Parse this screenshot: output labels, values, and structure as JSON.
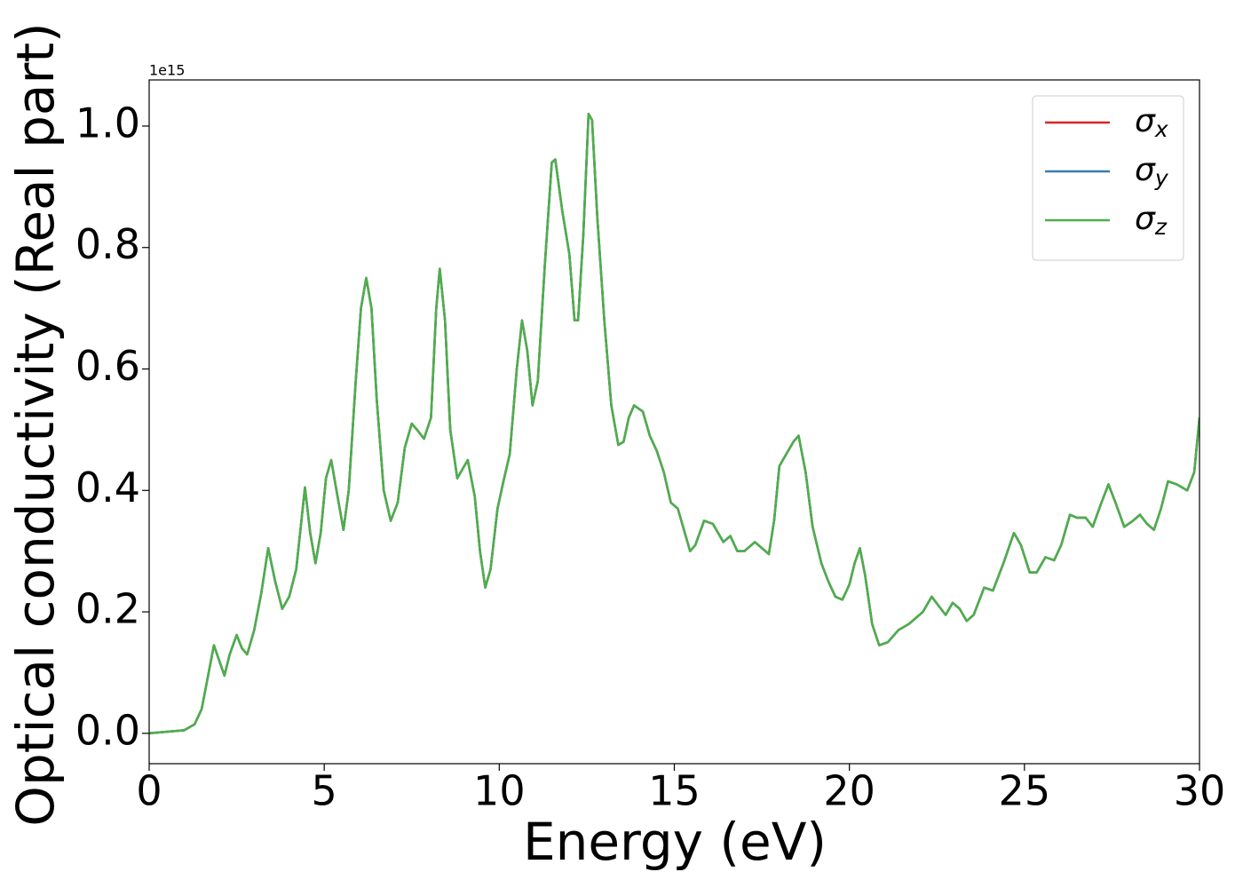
{
  "chart_data": {
    "type": "line",
    "xlabel": "Energy (eV)",
    "ylabel": "Optical conductivity (Real part)",
    "y_offset_label": "1e15",
    "xlim": [
      0,
      30
    ],
    "ylim": [
      -0.05,
      1.076
    ],
    "xticks": [
      0,
      5,
      10,
      15,
      20,
      25,
      30
    ],
    "yticks": [
      {
        "value": 0,
        "label": "0.0"
      },
      0.2,
      0.4,
      0.6,
      0.8,
      {
        "value": 1,
        "label": "1.0"
      }
    ],
    "legend": "upper right",
    "x": [
      0,
      1,
      1.3,
      1.5,
      1.7,
      1.85,
      2.0,
      2.15,
      2.3,
      2.5,
      2.65,
      2.8,
      3.0,
      3.2,
      3.4,
      3.6,
      3.8,
      4.0,
      4.2,
      4.45,
      4.6,
      4.75,
      4.9,
      5.05,
      5.2,
      5.35,
      5.55,
      5.7,
      5.9,
      6.05,
      6.2,
      6.35,
      6.5,
      6.7,
      6.9,
      7.1,
      7.3,
      7.5,
      7.65,
      7.85,
      8.05,
      8.2,
      8.3,
      8.45,
      8.6,
      8.8,
      9.0,
      9.1,
      9.3,
      9.45,
      9.6,
      9.75,
      9.95,
      10.1,
      10.3,
      10.5,
      10.65,
      10.8,
      10.95,
      11.1,
      11.3,
      11.5,
      11.6,
      11.8,
      12.0,
      12.15,
      12.25,
      12.4,
      12.55,
      12.65,
      12.8,
      13.0,
      13.2,
      13.4,
      13.55,
      13.7,
      13.85,
      14.1,
      14.3,
      14.5,
      14.7,
      14.9,
      15.1,
      15.3,
      15.45,
      15.6,
      15.85,
      16.1,
      16.4,
      16.6,
      16.8,
      17.0,
      17.3,
      17.5,
      17.7,
      17.85,
      18.0,
      18.2,
      18.4,
      18.55,
      18.75,
      18.95,
      19.2,
      19.4,
      19.6,
      19.8,
      20.0,
      20.15,
      20.3,
      20.45,
      20.65,
      20.85,
      21.1,
      21.4,
      21.7,
      21.9,
      22.1,
      22.35,
      22.55,
      22.75,
      22.95,
      23.15,
      23.35,
      23.55,
      23.85,
      24.1,
      24.4,
      24.7,
      24.9,
      25.15,
      25.35,
      25.6,
      25.85,
      26.05,
      26.3,
      26.5,
      26.75,
      26.95,
      27.2,
      27.4,
      27.6,
      27.85,
      28.1,
      28.3,
      28.5,
      28.7,
      28.9,
      29.1,
      29.35,
      29.65,
      29.85,
      30.0
    ],
    "series": [
      {
        "name": "σx",
        "color": "#d62728",
        "values": [
          0,
          0.005,
          0.015,
          0.04,
          0.1,
          0.145,
          0.12,
          0.095,
          0.13,
          0.162,
          0.14,
          0.13,
          0.17,
          0.23,
          0.305,
          0.25,
          0.205,
          0.225,
          0.27,
          0.405,
          0.33,
          0.28,
          0.33,
          0.42,
          0.45,
          0.4,
          0.335,
          0.4,
          0.58,
          0.7,
          0.75,
          0.7,
          0.55,
          0.4,
          0.35,
          0.38,
          0.47,
          0.51,
          0.5,
          0.485,
          0.52,
          0.7,
          0.765,
          0.68,
          0.5,
          0.42,
          0.44,
          0.45,
          0.39,
          0.3,
          0.24,
          0.27,
          0.37,
          0.41,
          0.46,
          0.6,
          0.68,
          0.63,
          0.54,
          0.58,
          0.77,
          0.94,
          0.945,
          0.86,
          0.79,
          0.68,
          0.68,
          0.82,
          1.02,
          1.01,
          0.85,
          0.68,
          0.54,
          0.475,
          0.48,
          0.52,
          0.54,
          0.53,
          0.49,
          0.465,
          0.43,
          0.38,
          0.37,
          0.33,
          0.3,
          0.31,
          0.35,
          0.345,
          0.315,
          0.325,
          0.3,
          0.3,
          0.315,
          0.305,
          0.295,
          0.35,
          0.44,
          0.46,
          0.48,
          0.49,
          0.43,
          0.34,
          0.28,
          0.25,
          0.225,
          0.22,
          0.245,
          0.28,
          0.305,
          0.26,
          0.18,
          0.145,
          0.15,
          0.17,
          0.18,
          0.19,
          0.2,
          0.225,
          0.21,
          0.195,
          0.215,
          0.205,
          0.185,
          0.195,
          0.24,
          0.235,
          0.28,
          0.33,
          0.31,
          0.265,
          0.265,
          0.29,
          0.285,
          0.31,
          0.36,
          0.355,
          0.355,
          0.34,
          0.38,
          0.41,
          0.38,
          0.34,
          0.35,
          0.36,
          0.345,
          0.335,
          0.37,
          0.415,
          0.41,
          0.4,
          0.43,
          0.52
        ]
      },
      {
        "name": "σy",
        "color": "#3a7bb0",
        "values": [
          0,
          0.005,
          0.015,
          0.04,
          0.1,
          0.145,
          0.12,
          0.095,
          0.13,
          0.162,
          0.14,
          0.13,
          0.17,
          0.23,
          0.305,
          0.25,
          0.205,
          0.225,
          0.27,
          0.405,
          0.33,
          0.28,
          0.33,
          0.42,
          0.45,
          0.4,
          0.335,
          0.4,
          0.58,
          0.7,
          0.75,
          0.7,
          0.55,
          0.4,
          0.35,
          0.38,
          0.47,
          0.51,
          0.5,
          0.485,
          0.52,
          0.7,
          0.765,
          0.68,
          0.5,
          0.42,
          0.44,
          0.45,
          0.39,
          0.3,
          0.24,
          0.27,
          0.37,
          0.41,
          0.46,
          0.6,
          0.68,
          0.63,
          0.54,
          0.58,
          0.77,
          0.94,
          0.945,
          0.86,
          0.79,
          0.68,
          0.68,
          0.82,
          1.02,
          1.01,
          0.85,
          0.68,
          0.54,
          0.475,
          0.48,
          0.52,
          0.54,
          0.53,
          0.49,
          0.465,
          0.43,
          0.38,
          0.37,
          0.33,
          0.3,
          0.31,
          0.35,
          0.345,
          0.315,
          0.325,
          0.3,
          0.3,
          0.315,
          0.305,
          0.295,
          0.35,
          0.44,
          0.46,
          0.48,
          0.49,
          0.43,
          0.34,
          0.28,
          0.25,
          0.225,
          0.22,
          0.245,
          0.28,
          0.305,
          0.26,
          0.18,
          0.145,
          0.15,
          0.17,
          0.18,
          0.19,
          0.2,
          0.225,
          0.21,
          0.195,
          0.215,
          0.205,
          0.185,
          0.195,
          0.24,
          0.235,
          0.28,
          0.33,
          0.31,
          0.265,
          0.265,
          0.29,
          0.285,
          0.31,
          0.36,
          0.355,
          0.355,
          0.34,
          0.38,
          0.41,
          0.38,
          0.34,
          0.35,
          0.36,
          0.345,
          0.335,
          0.37,
          0.415,
          0.41,
          0.4,
          0.43,
          0.52
        ]
      },
      {
        "name": "σz",
        "color": "#4daf4a",
        "values": [
          0,
          0.005,
          0.015,
          0.04,
          0.1,
          0.145,
          0.12,
          0.095,
          0.13,
          0.162,
          0.14,
          0.13,
          0.17,
          0.23,
          0.305,
          0.25,
          0.205,
          0.225,
          0.27,
          0.405,
          0.33,
          0.28,
          0.33,
          0.42,
          0.45,
          0.4,
          0.335,
          0.4,
          0.58,
          0.7,
          0.75,
          0.7,
          0.55,
          0.4,
          0.35,
          0.38,
          0.47,
          0.51,
          0.5,
          0.485,
          0.52,
          0.7,
          0.765,
          0.68,
          0.5,
          0.42,
          0.44,
          0.45,
          0.39,
          0.3,
          0.24,
          0.27,
          0.37,
          0.41,
          0.46,
          0.6,
          0.68,
          0.63,
          0.54,
          0.58,
          0.77,
          0.94,
          0.945,
          0.86,
          0.79,
          0.68,
          0.68,
          0.82,
          1.02,
          1.01,
          0.85,
          0.68,
          0.54,
          0.475,
          0.48,
          0.52,
          0.54,
          0.53,
          0.49,
          0.465,
          0.43,
          0.38,
          0.37,
          0.33,
          0.3,
          0.31,
          0.35,
          0.345,
          0.315,
          0.325,
          0.3,
          0.3,
          0.315,
          0.305,
          0.295,
          0.35,
          0.44,
          0.46,
          0.48,
          0.49,
          0.43,
          0.34,
          0.28,
          0.25,
          0.225,
          0.22,
          0.245,
          0.28,
          0.305,
          0.26,
          0.18,
          0.145,
          0.15,
          0.17,
          0.18,
          0.19,
          0.2,
          0.225,
          0.21,
          0.195,
          0.215,
          0.205,
          0.185,
          0.195,
          0.24,
          0.235,
          0.28,
          0.33,
          0.31,
          0.265,
          0.265,
          0.29,
          0.285,
          0.31,
          0.36,
          0.355,
          0.355,
          0.34,
          0.38,
          0.41,
          0.38,
          0.34,
          0.35,
          0.36,
          0.345,
          0.335,
          0.37,
          0.415,
          0.41,
          0.4,
          0.43,
          0.52
        ]
      }
    ]
  }
}
